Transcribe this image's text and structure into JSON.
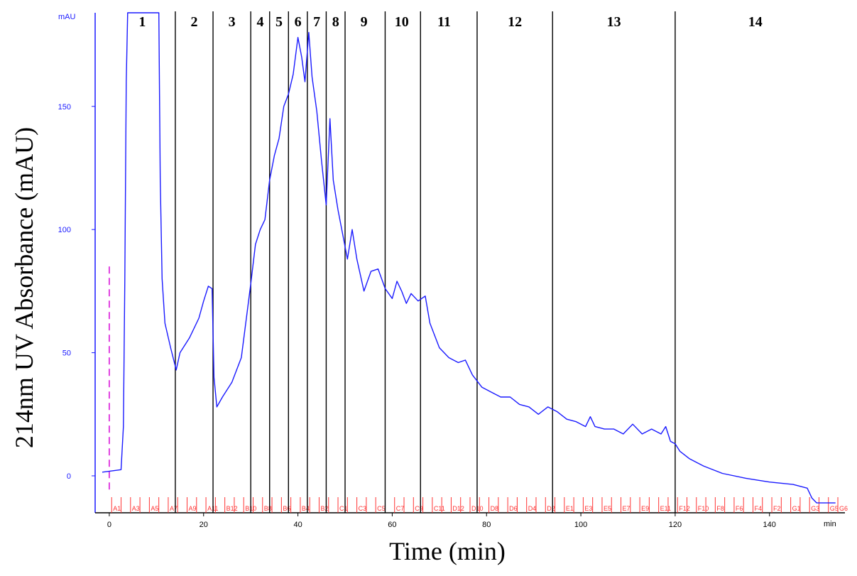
{
  "chart_data": {
    "type": "line",
    "xlabel": "Time (min)",
    "ylabel": "214nm UV Absorbance (mAU)",
    "y_unit": "mAU",
    "x_unit": "min",
    "xlim": [
      -3,
      156
    ],
    "ylim": [
      -15,
      188
    ],
    "x_ticks": [
      0,
      20,
      40,
      60,
      80,
      100,
      120,
      140
    ],
    "y_ticks": [
      0,
      50,
      100,
      150
    ],
    "grid": false,
    "colors": {
      "trace": "#1a1aff",
      "axis": "#1a1aff",
      "fractions": "#ff3333",
      "injection": "#e040e0",
      "dividers": "#000000"
    },
    "series": [
      {
        "points": [
          [
            -1.5,
            1.5
          ],
          [
            2.5,
            2.5
          ],
          [
            3.0,
            20
          ],
          [
            3.3,
            80
          ],
          [
            3.6,
            160
          ],
          [
            3.9,
            188
          ],
          [
            10.5,
            188
          ],
          [
            10.8,
            120
          ],
          [
            11.2,
            80
          ],
          [
            11.8,
            62
          ],
          [
            13.0,
            52
          ],
          [
            14.2,
            43
          ],
          [
            15.0,
            50
          ],
          [
            17.0,
            56
          ],
          [
            19.0,
            64
          ],
          [
            20.0,
            71
          ],
          [
            21.0,
            77
          ],
          [
            21.8,
            76
          ],
          [
            22.2,
            40
          ],
          [
            22.8,
            28
          ],
          [
            24.0,
            32
          ],
          [
            26.0,
            38
          ],
          [
            28.0,
            48
          ],
          [
            30.0,
            78
          ],
          [
            31.0,
            94
          ],
          [
            32.0,
            100
          ],
          [
            33.0,
            104
          ],
          [
            34.0,
            120
          ],
          [
            35.0,
            130
          ],
          [
            36.0,
            137
          ],
          [
            37.0,
            150
          ],
          [
            38.0,
            155
          ],
          [
            39.0,
            163
          ],
          [
            40.0,
            178
          ],
          [
            40.8,
            170
          ],
          [
            41.5,
            160
          ],
          [
            42.3,
            180
          ],
          [
            43.0,
            162
          ],
          [
            44.0,
            148
          ],
          [
            45.0,
            128
          ],
          [
            46.0,
            110
          ],
          [
            46.8,
            145
          ],
          [
            47.5,
            120
          ],
          [
            48.5,
            108
          ],
          [
            49.5,
            98
          ],
          [
            50.5,
            88
          ],
          [
            51.5,
            100
          ],
          [
            52.5,
            88
          ],
          [
            54.0,
            75
          ],
          [
            55.5,
            83
          ],
          [
            57.0,
            84
          ],
          [
            58.5,
            76
          ],
          [
            60.0,
            72
          ],
          [
            61.0,
            79
          ],
          [
            62.0,
            75
          ],
          [
            63.0,
            70
          ],
          [
            64.0,
            74
          ],
          [
            65.5,
            71
          ],
          [
            67.0,
            73
          ],
          [
            68.0,
            62
          ],
          [
            70.0,
            52
          ],
          [
            72.0,
            48
          ],
          [
            74.0,
            46
          ],
          [
            75.5,
            47
          ],
          [
            77.0,
            41
          ],
          [
            79.0,
            36
          ],
          [
            81.0,
            34
          ],
          [
            83.0,
            32
          ],
          [
            85.0,
            32
          ],
          [
            87.0,
            29
          ],
          [
            89.0,
            28
          ],
          [
            91.0,
            25
          ],
          [
            93.0,
            28
          ],
          [
            95.0,
            26
          ],
          [
            97.0,
            23
          ],
          [
            99.0,
            22
          ],
          [
            101.0,
            20
          ],
          [
            102.0,
            24
          ],
          [
            103.0,
            20
          ],
          [
            105.0,
            19
          ],
          [
            107.0,
            19
          ],
          [
            109.0,
            17
          ],
          [
            111.0,
            21
          ],
          [
            113.0,
            17
          ],
          [
            115.0,
            19
          ],
          [
            117.0,
            17
          ],
          [
            118.0,
            20
          ],
          [
            119.0,
            14
          ],
          [
            120.0,
            13
          ],
          [
            121.0,
            10
          ],
          [
            123.0,
            7
          ],
          [
            126.0,
            4
          ],
          [
            130.0,
            1
          ],
          [
            135.0,
            -1
          ],
          [
            140.0,
            -2.5
          ],
          [
            145.0,
            -3.5
          ],
          [
            148.0,
            -5
          ],
          [
            149.0,
            -9
          ],
          [
            150.0,
            -11
          ],
          [
            154.0,
            -11
          ]
        ]
      }
    ],
    "fraction_dividers": [
      14,
      22,
      30,
      34,
      38,
      42,
      46,
      50,
      58.5,
      66,
      78,
      94,
      120
    ],
    "fraction_labels": [
      {
        "label": "1",
        "x": 7
      },
      {
        "label": "2",
        "x": 18
      },
      {
        "label": "3",
        "x": 26
      },
      {
        "label": "4",
        "x": 32
      },
      {
        "label": "5",
        "x": 36
      },
      {
        "label": "6",
        "x": 40
      },
      {
        "label": "7",
        "x": 44
      },
      {
        "label": "8",
        "x": 48
      },
      {
        "label": "9",
        "x": 54
      },
      {
        "label": "10",
        "x": 62
      },
      {
        "label": "11",
        "x": 71
      },
      {
        "label": "12",
        "x": 86
      },
      {
        "label": "13",
        "x": 107
      },
      {
        "label": "14",
        "x": 137
      }
    ],
    "fraction_wells": [
      {
        "label": "A1",
        "x": 0.5
      },
      {
        "label": "A3",
        "x": 4.5
      },
      {
        "label": "A5",
        "x": 8.5
      },
      {
        "label": "A7",
        "x": 12.5
      },
      {
        "label": "A9",
        "x": 16.5
      },
      {
        "label": "A11",
        "x": 20.5
      },
      {
        "label": "B12",
        "x": 24.5
      },
      {
        "label": "B10",
        "x": 28.5
      },
      {
        "label": "B8",
        "x": 32.5
      },
      {
        "label": "B6",
        "x": 36.5
      },
      {
        "label": "B4",
        "x": 40.5
      },
      {
        "label": "B2",
        "x": 44.5
      },
      {
        "label": "C1",
        "x": 48.5
      },
      {
        "label": "C3",
        "x": 52.5
      },
      {
        "label": "C5",
        "x": 56.5
      },
      {
        "label": "C7",
        "x": 60.5
      },
      {
        "label": "C9",
        "x": 64.5
      },
      {
        "label": "C11",
        "x": 68.5
      },
      {
        "label": "D12",
        "x": 72.5
      },
      {
        "label": "D10",
        "x": 76.5
      },
      {
        "label": "D8",
        "x": 80.5
      },
      {
        "label": "D6",
        "x": 84.5
      },
      {
        "label": "D4",
        "x": 88.5
      },
      {
        "label": "D2",
        "x": 92.5
      },
      {
        "label": "E1",
        "x": 96.5
      },
      {
        "label": "E3",
        "x": 100.5
      },
      {
        "label": "E5",
        "x": 104.5
      },
      {
        "label": "E7",
        "x": 108.5
      },
      {
        "label": "E9",
        "x": 112.5
      },
      {
        "label": "E11",
        "x": 116.5
      },
      {
        "label": "F12",
        "x": 120.5
      },
      {
        "label": "F10",
        "x": 124.5
      },
      {
        "label": "F8",
        "x": 128.5
      },
      {
        "label": "F6",
        "x": 132.5
      },
      {
        "label": "F4",
        "x": 136.5
      },
      {
        "label": "F2",
        "x": 140.5
      },
      {
        "label": "G1",
        "x": 144.5
      },
      {
        "label": "G3",
        "x": 148.5
      },
      {
        "label": "G5",
        "x": 152.5
      },
      {
        "label": "G6",
        "x": 154.5
      }
    ],
    "injection_marker": {
      "x": 0,
      "y_top": 85
    }
  }
}
